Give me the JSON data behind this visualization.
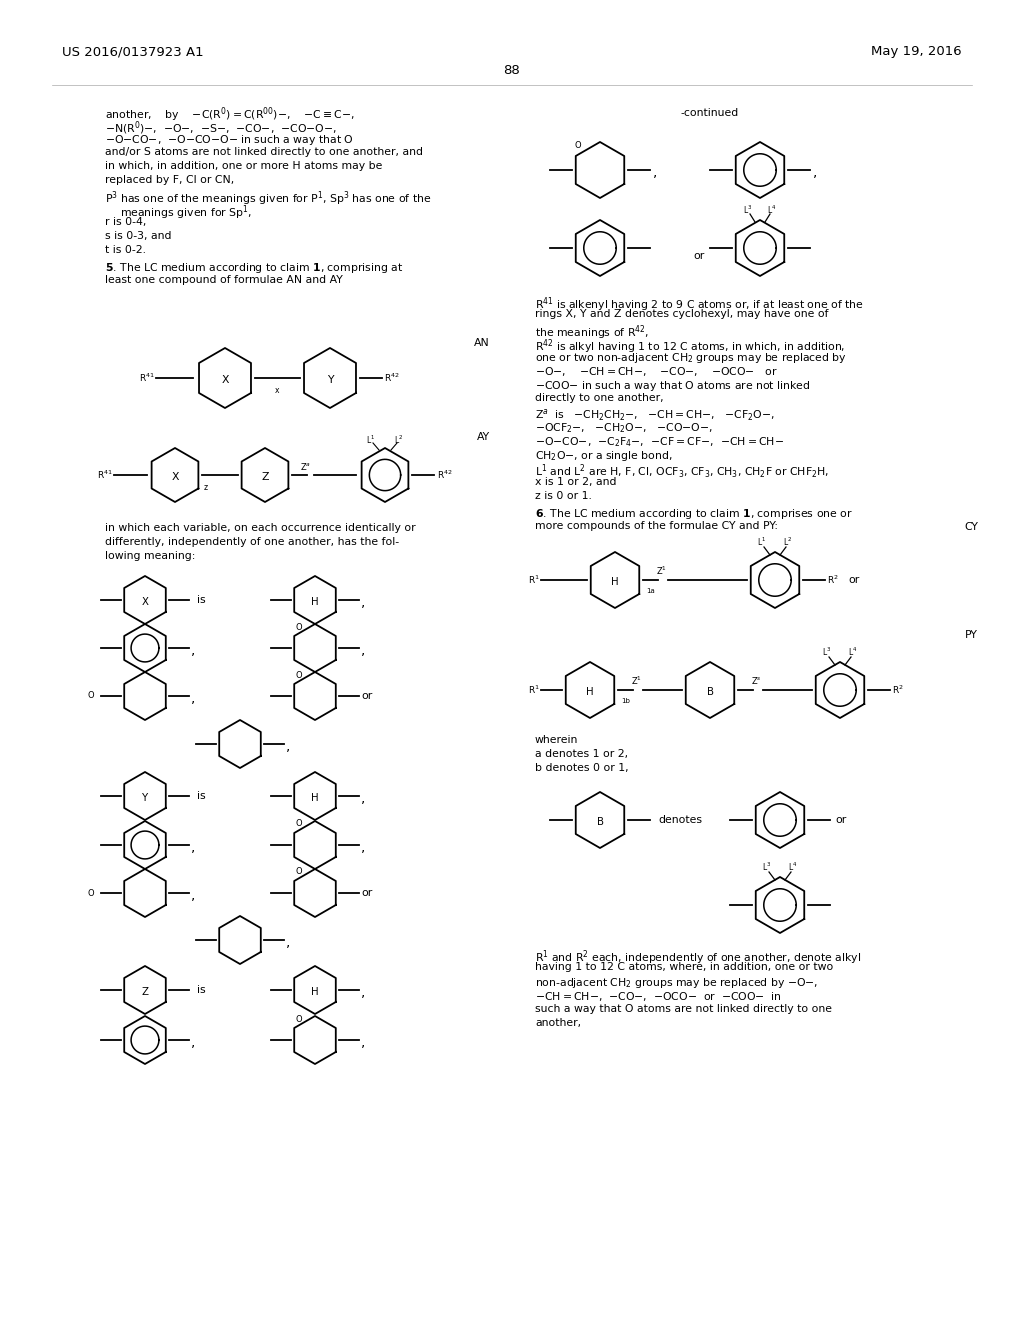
{
  "page_header_left": "US 2016/0137923 A1",
  "page_header_right": "May 19, 2016",
  "page_number": "88",
  "background_color": "#ffffff",
  "text_color": "#000000",
  "figsize": [
    10.24,
    13.2
  ],
  "dpi": 100
}
